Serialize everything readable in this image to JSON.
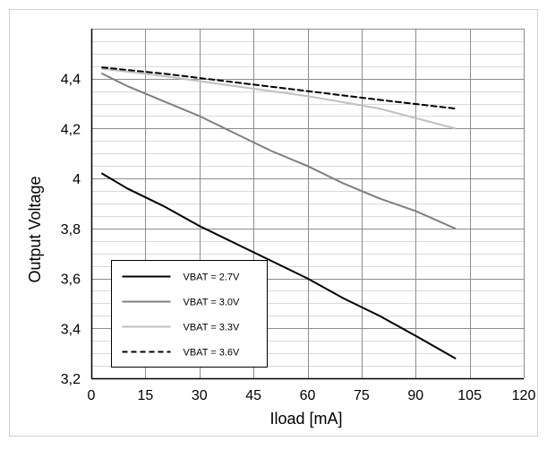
{
  "chart_data": {
    "type": "line",
    "title": "",
    "xlabel": "Iload [mA]",
    "ylabel": "Output Voltage",
    "xlim": [
      0,
      120
    ],
    "ylim": [
      3.2,
      4.6
    ],
    "x_ticks": [
      "0",
      "15",
      "30",
      "45",
      "60",
      "75",
      "90",
      "105",
      "120"
    ],
    "y_ticks": [
      "3,2",
      "3,4",
      "3,6",
      "3,8",
      "4",
      "4,2",
      "4,4"
    ],
    "grid": true,
    "legend_position": "bottom-left",
    "series": [
      {
        "name": "VBAT = 2.7V",
        "color": "#000000",
        "style": "solid",
        "x": [
          3,
          10,
          20,
          30,
          40,
          50,
          60,
          70,
          80,
          90,
          101
        ],
        "y": [
          4.02,
          3.96,
          3.89,
          3.81,
          3.74,
          3.67,
          3.6,
          3.52,
          3.45,
          3.37,
          3.28
        ]
      },
      {
        "name": "VBAT = 3.0V",
        "color": "#7f7f7f",
        "style": "solid",
        "x": [
          3,
          10,
          20,
          30,
          40,
          50,
          60,
          70,
          80,
          90,
          101
        ],
        "y": [
          4.42,
          4.37,
          4.31,
          4.25,
          4.18,
          4.11,
          4.05,
          3.98,
          3.92,
          3.87,
          3.8
        ]
      },
      {
        "name": "VBAT = 3.3V",
        "color": "#c0c0c0",
        "style": "solid",
        "x": [
          3,
          20,
          40,
          60,
          80,
          101
        ],
        "y": [
          4.44,
          4.41,
          4.37,
          4.33,
          4.28,
          4.2
        ]
      },
      {
        "name": "VBAT = 3.6V",
        "color": "#000000",
        "style": "dashed",
        "x": [
          3,
          20,
          40,
          60,
          80,
          101
        ],
        "y": [
          4.445,
          4.42,
          4.385,
          4.35,
          4.315,
          4.28
        ]
      }
    ]
  }
}
